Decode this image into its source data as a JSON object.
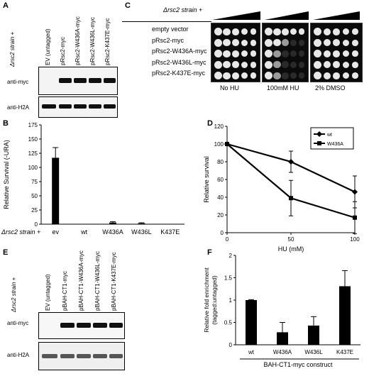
{
  "panels": {
    "A": {
      "letter": "A",
      "strain_label": "Δrsc2 strain +",
      "lanes": [
        "EV (untagged)",
        "pRsc2-myc",
        "pRsc2-W436A-myc",
        "pRsc2-W436L-myc",
        "pRsc2-K437E-myc"
      ],
      "blot_labels": [
        "anti-myc",
        "anti-H2A"
      ]
    },
    "B": {
      "letter": "B",
      "strain_label": "Δrsc2 strain +",
      "chart_data": {
        "type": "bar",
        "categories": [
          "ev",
          "wt",
          "W436A",
          "W436L",
          "K437E"
        ],
        "values": [
          117,
          0.5,
          3,
          1.5,
          0.5
        ],
        "errors": [
          18,
          0.5,
          1.5,
          1,
          0.5
        ],
        "ylabel": "Relative Survival (-URA)",
        "ylim": [
          0,
          175
        ],
        "yticks": [
          0,
          25,
          50,
          75,
          100,
          125,
          150,
          175
        ]
      }
    },
    "C": {
      "letter": "C",
      "strain_label": "Δrsc2 strain +",
      "rows": [
        "empty vector",
        "pRsc2-myc",
        "pRsc2-W436A-myc",
        "pRsc2-W436L-myc",
        "pRsc2-K437E-myc"
      ],
      "conditions": [
        "No HU",
        "100mM HU",
        "2% DMSO"
      ],
      "growth": [
        [
          5,
          5,
          5
        ],
        [
          5,
          3,
          5
        ],
        [
          5,
          2,
          5
        ],
        [
          5,
          2,
          5
        ],
        [
          5,
          2,
          5
        ]
      ]
    },
    "D": {
      "letter": "D",
      "chart_data": {
        "type": "line",
        "x": [
          0,
          50,
          100
        ],
        "series": [
          {
            "name": "wt",
            "values": [
              100,
              80,
              46
            ],
            "errors": [
              0,
              12,
              18
            ],
            "marker": "diamond"
          },
          {
            "name": "W436A",
            "values": [
              100,
              39,
              17
            ],
            "errors": [
              0,
              20,
              18
            ],
            "marker": "square"
          }
        ],
        "xlabel": "HU (mM)",
        "ylabel": "Relative survival",
        "xlim": [
          0,
          100
        ],
        "xticks": [
          0,
          50,
          100
        ],
        "ylim": [
          0,
          120
        ],
        "yticks": [
          0,
          20,
          40,
          60,
          80,
          100,
          120
        ],
        "legend": "top-right"
      }
    },
    "E": {
      "letter": "E",
      "strain_label": "Δrsc2 strain +",
      "lanes": [
        "EV (untagged)",
        "pBAH-CT1-myc",
        "pBAH-CT1-W436A-myc",
        "pBAH-CT1-W436L-myc",
        "pBAH-CT1-K437E-myc"
      ],
      "blot_labels": [
        "anti-myc",
        "anti-H2A"
      ]
    },
    "F": {
      "letter": "F",
      "chart_data": {
        "type": "bar",
        "categories": [
          "wt",
          "W436A",
          "W436L",
          "K437E"
        ],
        "values": [
          1.0,
          0.28,
          0.43,
          1.31
        ],
        "errors": [
          0.01,
          0.22,
          0.2,
          0.35
        ],
        "ylabel": "Relative fold enrichment (tagged:untagged)",
        "xlabel": "BAH-CT1-myc construct",
        "ylim": [
          0,
          2
        ],
        "yticks": [
          0,
          0.5,
          1,
          1.5,
          2
        ]
      }
    }
  }
}
